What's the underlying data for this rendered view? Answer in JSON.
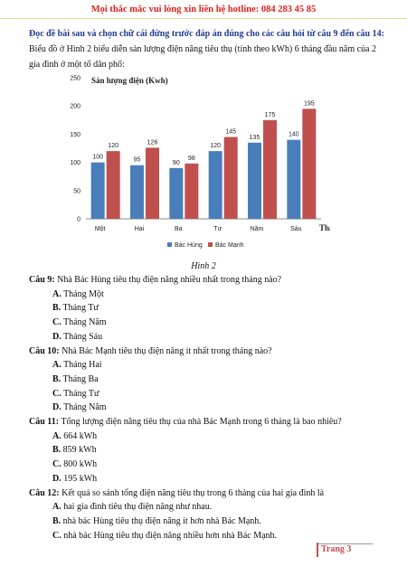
{
  "header": {
    "hotline": "Mọi thắc mắc vui lòng xin liên hệ hotline: 084 283 45 85"
  },
  "instruction": "Đọc đề bài sau và chọn chữ cái đứng trước đáp án đúng cho các câu hỏi từ câu 9 đến câu 14:",
  "intro": "Biểu đồ ở Hình 2 biểu diễn sản lượng điện năng tiêu thụ (tính theo kWh) 6 tháng đầu năm của 2 gia đình ở một tổ dân phố:",
  "chart_data": {
    "type": "bar",
    "title": "Sản lượng điện (Kwh)",
    "x_label": "Tháng",
    "categories": [
      "Một",
      "Hai",
      "Ba",
      "Tư",
      "Năm",
      "Sáu"
    ],
    "series": [
      {
        "name": "Bác Hùng",
        "color": "#4a7ebb",
        "values": [
          100,
          95,
          90,
          120,
          135,
          140
        ]
      },
      {
        "name": "Bác Mạnh",
        "color": "#c0504d",
        "values": [
          120,
          126,
          98,
          145,
          175,
          195
        ]
      }
    ],
    "ylim": [
      0,
      250
    ],
    "yticks": [
      0,
      50,
      100,
      150,
      200,
      250
    ],
    "legend": "bottom"
  },
  "caption": "Hình 2",
  "questions": [
    {
      "label": "Câu 9:",
      "text": "Nhà Bác Hùng tiêu thụ điện năng nhiều nhất trong tháng nào?",
      "options": [
        {
          "letter": "A.",
          "text": "Tháng Một"
        },
        {
          "letter": "B.",
          "text": "Tháng Tư"
        },
        {
          "letter": "C.",
          "text": "Tháng Năm"
        },
        {
          "letter": "D.",
          "text": "Tháng Sáu"
        }
      ]
    },
    {
      "label": "Câu 10:",
      "text": "Nhà Bác Mạnh tiêu thụ điện năng ít nhất trong tháng nào?",
      "options": [
        {
          "letter": "A.",
          "text": "Tháng Hai"
        },
        {
          "letter": "B.",
          "text": "Tháng Ba"
        },
        {
          "letter": "C.",
          "text": "Tháng Tư"
        },
        {
          "letter": "D.",
          "text": "Tháng Năm"
        }
      ]
    },
    {
      "label": "Câu 11:",
      "text": "Tổng lượng điện năng tiêu thụ của nhà Bác Mạnh trong 6 tháng là bao nhiêu?",
      "options": [
        {
          "letter": "A.",
          "text": "664 kWh"
        },
        {
          "letter": "B.",
          "text": "859 kWh"
        },
        {
          "letter": "C.",
          "text": "800 kWh"
        },
        {
          "letter": "D.",
          "text": "195 kWh"
        }
      ]
    },
    {
      "label": "Câu 12:",
      "text": "Kết quả so sánh tổng điện năng tiêu thụ trong 6 tháng của hai gia đình là",
      "options": [
        {
          "letter": "A.",
          "text": "hai gia đình tiêu thụ điện năng như nhau."
        },
        {
          "letter": "B.",
          "text": "nhà bác Hùng tiêu thụ điện năng ít hơn nhà Bác Mạnh."
        },
        {
          "letter": "C.",
          "text": "nhà bác Hùng tiêu thụ điện năng nhiều hơn nhà Bác Mạnh."
        }
      ]
    }
  ],
  "footer": {
    "page": "Trang 3"
  }
}
